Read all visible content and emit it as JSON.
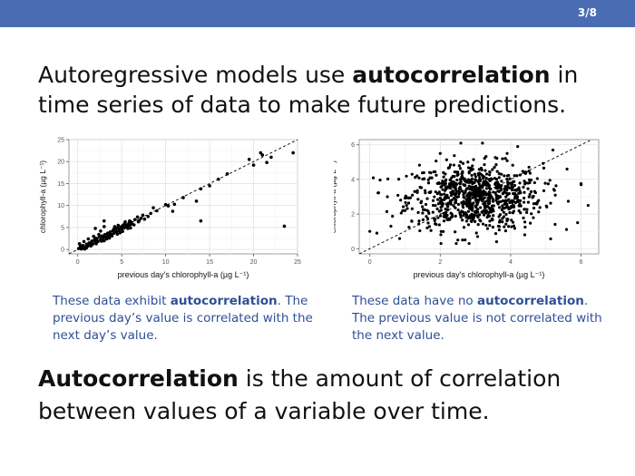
{
  "slide": {
    "number": "3/8",
    "accent": "#4a6cb3",
    "caption_color": "#2e4f97"
  },
  "headline": {
    "pre": "Autoregressive models use ",
    "bold": "autocorrelation",
    "post": " in time series of data to make future predictions."
  },
  "captions": {
    "left": {
      "pre": "These data exhibit ",
      "bold": "autocorrelation",
      "post": ". The previous day’s value is correlated with the next day’s value."
    },
    "right": {
      "pre": "These data have no ",
      "bold": "autocorrelation",
      "post": ". The previous value is not correlated with the next value."
    }
  },
  "footer": {
    "bold": "Autocorrelation",
    "post": " is the amount of correlation between values of a variable over time."
  },
  "chart_data": [
    {
      "type": "scatter",
      "xlabel": "previous day's chlorophyll-a (µg L⁻¹)",
      "ylabel": "chlorophyll-a (µg L⁻¹)",
      "xlim": [
        -1,
        25
      ],
      "ylim": [
        -1,
        25
      ],
      "x_ticks": [
        0,
        5,
        10,
        15,
        20,
        25
      ],
      "y_ticks": [
        0,
        5,
        10,
        15,
        20,
        25
      ],
      "grid": true,
      "reference_line": "1:1 dashed",
      "points": [
        [
          0.3,
          0.4
        ],
        [
          0.5,
          0.2
        ],
        [
          0.6,
          0.9
        ],
        [
          0.8,
          0.5
        ],
        [
          1.0,
          1.2
        ],
        [
          1.1,
          0.7
        ],
        [
          1.3,
          1.5
        ],
        [
          1.4,
          0.9
        ],
        [
          1.6,
          1.9
        ],
        [
          1.7,
          1.2
        ],
        [
          1.9,
          2.2
        ],
        [
          2.0,
          1.6
        ],
        [
          2.2,
          2.5
        ],
        [
          2.3,
          1.8
        ],
        [
          2.5,
          2.9
        ],
        [
          2.6,
          2.2
        ],
        [
          2.8,
          3.1
        ],
        [
          2.9,
          2.5
        ],
        [
          3.1,
          3.4
        ],
        [
          3.2,
          2.8
        ],
        [
          3.4,
          3.7
        ],
        [
          3.5,
          3.1
        ],
        [
          3.7,
          4.0
        ],
        [
          3.8,
          3.4
        ],
        [
          4.0,
          4.3
        ],
        [
          4.1,
          3.7
        ],
        [
          4.3,
          4.5
        ],
        [
          4.4,
          4.0
        ],
        [
          4.6,
          4.8
        ],
        [
          4.7,
          4.3
        ],
        [
          4.9,
          5.1
        ],
        [
          5.0,
          4.6
        ],
        [
          5.2,
          5.4
        ],
        [
          5.3,
          4.9
        ],
        [
          5.5,
          5.6
        ],
        [
          5.6,
          5.2
        ],
        [
          5.8,
          5.9
        ],
        [
          5.9,
          5.5
        ],
        [
          6.1,
          6.2
        ],
        [
          6.2,
          5.8
        ],
        [
          0.2,
          1.3
        ],
        [
          0.7,
          1.8
        ],
        [
          1.2,
          2.4
        ],
        [
          2.4,
          3.4
        ],
        [
          3.0,
          2.0
        ],
        [
          3.6,
          2.6
        ],
        [
          4.2,
          5.2
        ],
        [
          4.8,
          3.8
        ],
        [
          5.4,
          6.3
        ],
        [
          6.0,
          4.9
        ],
        [
          0.4,
          0.1
        ],
        [
          0.9,
          0.3
        ],
        [
          1.5,
          0.8
        ],
        [
          2.1,
          1.3
        ],
        [
          2.7,
          1.9
        ],
        [
          3.3,
          2.4
        ],
        [
          3.9,
          3.1
        ],
        [
          4.5,
          3.5
        ],
        [
          5.1,
          4.1
        ],
        [
          5.7,
          4.8
        ],
        [
          6.5,
          6.8
        ],
        [
          6.9,
          6.3
        ],
        [
          7.2,
          7.1
        ],
        [
          7.6,
          6.9
        ],
        [
          8.0,
          7.5
        ],
        [
          8.3,
          8.2
        ],
        [
          6.8,
          7.4
        ],
        [
          7.4,
          7.8
        ],
        [
          1.8,
          3.0
        ],
        [
          2.6,
          4.2
        ],
        [
          0.1,
          0.2
        ],
        [
          0.3,
          0.9
        ],
        [
          0.8,
          0.1
        ],
        [
          1.0,
          0.4
        ],
        [
          1.6,
          1.4
        ],
        [
          2.2,
          1.9
        ],
        [
          2.9,
          2.9
        ],
        [
          3.5,
          3.6
        ],
        [
          4.1,
          4.6
        ],
        [
          4.6,
          5.5
        ],
        [
          5.3,
          5.8
        ],
        [
          5.9,
          6.5
        ],
        [
          6.4,
          5.6
        ],
        [
          7.0,
          6.6
        ],
        [
          0.5,
          0.6
        ],
        [
          1.3,
          1.0
        ],
        [
          2.0,
          2.6
        ],
        [
          3.7,
          3.2
        ],
        [
          4.4,
          4.9
        ],
        [
          5.1,
          5.4
        ],
        [
          10.0,
          10.2
        ],
        [
          10.3,
          9.9
        ],
        [
          11.0,
          10.3
        ],
        [
          12.0,
          11.8
        ],
        [
          13.5,
          11.0
        ],
        [
          14.0,
          13.8
        ],
        [
          15.0,
          14.5
        ],
        [
          16.0,
          16.0
        ],
        [
          17.0,
          17.2
        ],
        [
          14.0,
          6.5
        ],
        [
          10.8,
          8.7
        ],
        [
          3.0,
          6.5
        ],
        [
          3.0,
          5.2
        ],
        [
          2.0,
          4.8
        ],
        [
          20.0,
          19.2
        ],
        [
          19.5,
          20.5
        ],
        [
          20.8,
          22.0
        ],
        [
          21.0,
          21.5
        ],
        [
          21.5,
          19.8
        ],
        [
          22.0,
          21.0
        ],
        [
          23.5,
          5.3
        ],
        [
          24.5,
          22.0
        ],
        [
          9.0,
          8.8
        ],
        [
          8.6,
          9.5
        ]
      ]
    },
    {
      "type": "scatter",
      "xlabel": "previous day's chlorophyll-a (µg L⁻¹)",
      "ylabel": "chlorophyll-a (µg L⁻¹)",
      "xlim": [
        -0.3,
        6.5
      ],
      "ylim": [
        -0.3,
        6.3
      ],
      "x_ticks": [
        0,
        2,
        4,
        6
      ],
      "y_ticks": [
        0,
        2,
        4,
        6
      ],
      "grid": true,
      "reference_line": "1:1 dashed",
      "cloud": {
        "n": 820,
        "x_mean": 3.0,
        "x_sd": 0.95,
        "y_mean": 3.0,
        "y_sd": 0.95
      },
      "points": [
        [
          0.0,
          1.0
        ],
        [
          0.2,
          0.9
        ],
        [
          0.6,
          1.3
        ],
        [
          1.0,
          2.2
        ],
        [
          0.5,
          3.0
        ],
        [
          3.2,
          6.1
        ],
        [
          4.2,
          5.9
        ],
        [
          5.2,
          5.7
        ],
        [
          3.9,
          5.5
        ],
        [
          6.0,
          3.7
        ],
        [
          6.2,
          2.5
        ],
        [
          5.9,
          1.5
        ],
        [
          2.5,
          0.5
        ],
        [
          3.6,
          0.4
        ],
        [
          4.4,
          0.8
        ],
        [
          2.0,
          5.5
        ],
        [
          5.6,
          4.6
        ],
        [
          1.2,
          4.3
        ],
        [
          1.4,
          1.6
        ]
      ]
    }
  ]
}
